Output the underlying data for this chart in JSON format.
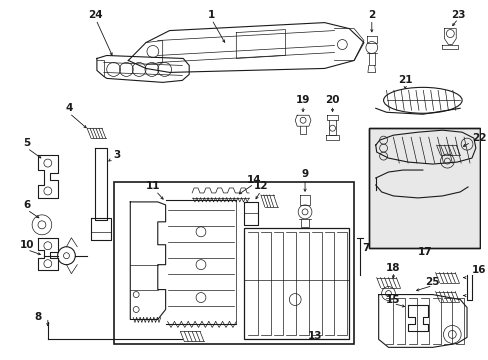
{
  "bg_color": "#ffffff",
  "lc": "#1a1a1a",
  "fig_w": 4.89,
  "fig_h": 3.6,
  "dpi": 100,
  "gray_bg": "#e8e8e8"
}
